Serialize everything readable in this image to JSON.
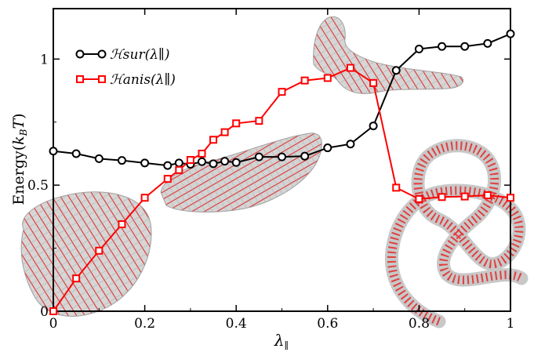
{
  "chart_data": {
    "type": "line",
    "title": "",
    "xlabel": "λ∥",
    "ylabel": "Energy(kBT)",
    "xlim": [
      0,
      1
    ],
    "ylim": [
      0,
      1.2
    ],
    "x_ticks": [
      0,
      0.2,
      0.4,
      0.6,
      0.8,
      1
    ],
    "x_tick_labels": [
      "0",
      "0.2",
      "0.4",
      "0.6",
      "0.8",
      "1"
    ],
    "y_ticks": [
      0,
      0.5,
      1
    ],
    "y_tick_labels": [
      "0",
      "0.5",
      "1"
    ],
    "grid": false,
    "legend_position": "top-left",
    "series": [
      {
        "name": "ℋsur(λ∥)",
        "color": "#000000",
        "marker": "circle",
        "x": [
          0,
          0.05,
          0.1,
          0.15,
          0.2,
          0.25,
          0.275,
          0.3,
          0.325,
          0.35,
          0.375,
          0.4,
          0.45,
          0.5,
          0.55,
          0.6,
          0.65,
          0.7,
          0.75,
          0.8,
          0.85,
          0.9,
          0.95,
          1.0
        ],
        "values": [
          0.635,
          0.625,
          0.605,
          0.598,
          0.588,
          0.578,
          0.588,
          0.583,
          0.593,
          0.585,
          0.595,
          0.59,
          0.612,
          0.612,
          0.615,
          0.648,
          0.663,
          0.735,
          0.955,
          1.04,
          1.05,
          1.05,
          1.062,
          1.1
        ]
      },
      {
        "name": "ℋanis(λ∥)",
        "color": "#ff0000",
        "marker": "square",
        "x": [
          0,
          0.05,
          0.1,
          0.15,
          0.2,
          0.25,
          0.275,
          0.3,
          0.325,
          0.35,
          0.375,
          0.4,
          0.45,
          0.5,
          0.55,
          0.6,
          0.65,
          0.7,
          0.75,
          0.8,
          0.85,
          0.9,
          0.95,
          1.0
        ],
        "values": [
          0.0,
          0.13,
          0.24,
          0.345,
          0.45,
          0.525,
          0.56,
          0.6,
          0.625,
          0.68,
          0.71,
          0.745,
          0.755,
          0.87,
          0.915,
          0.925,
          0.965,
          0.905,
          0.49,
          0.445,
          0.453,
          0.455,
          0.46,
          0.45
        ]
      }
    ]
  }
}
